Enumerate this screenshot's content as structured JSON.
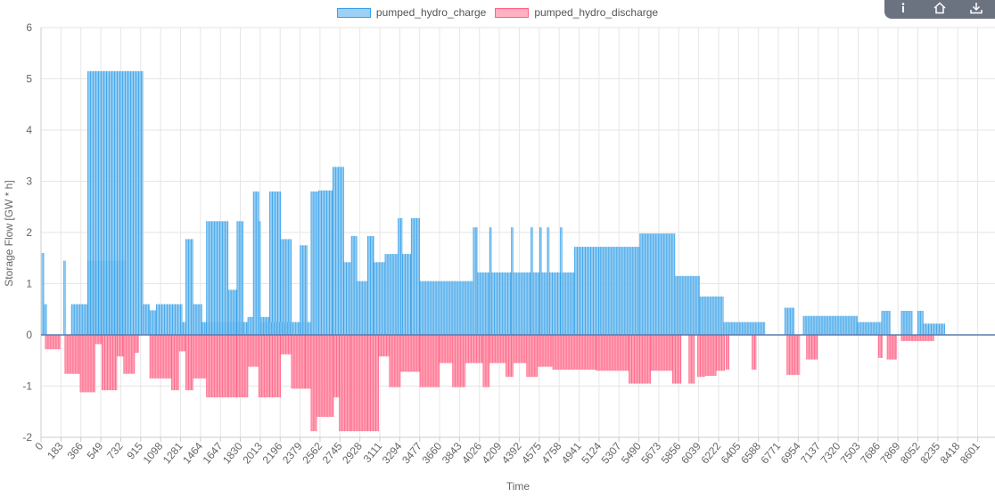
{
  "legend": {
    "charge": "pumped_hydro_charge",
    "discharge": "pumped_hydro_discharge"
  },
  "colors": {
    "charge_fill": "#7fc2f0",
    "charge_border": "#36a2eb",
    "discharge_fill": "#ff8fa8",
    "discharge_border": "#ff6384",
    "grid": "#e6e6e6",
    "toolbar": "#6b7280"
  },
  "toolbar": {
    "icons": [
      "info-icon",
      "home-icon",
      "download-icon"
    ]
  },
  "chart_data": {
    "type": "bar",
    "xlabel": "Time",
    "ylabel": "Storage Flow [GW * h]",
    "ylim": [
      -2,
      6
    ],
    "yticks": [
      -2,
      -1,
      0,
      1,
      2,
      3,
      4,
      5,
      6
    ],
    "xrange": [
      0,
      8760
    ],
    "xticks": [
      0,
      183,
      366,
      549,
      732,
      915,
      1098,
      1281,
      1464,
      1647,
      1830,
      2013,
      2196,
      2379,
      2562,
      2745,
      2928,
      3111,
      3294,
      3477,
      3660,
      3843,
      4026,
      4209,
      4392,
      4575,
      4758,
      4941,
      5124,
      5307,
      5490,
      5673,
      5856,
      6039,
      6222,
      6405,
      6588,
      6771,
      6954,
      7137,
      7320,
      7503,
      7686,
      7869,
      8052,
      8235,
      8418,
      8601
    ],
    "grid": true,
    "legend_position": "top",
    "series": [
      {
        "name": "pumped_hydro_charge",
        "segments": [
          [
            0,
            25,
            1.6
          ],
          [
            25,
            50,
            0.6
          ],
          [
            210,
            230,
            1.45
          ],
          [
            280,
            430,
            0.6
          ],
          [
            430,
            780,
            1.45
          ],
          [
            430,
            940,
            5.15
          ],
          [
            940,
            1000,
            0.6
          ],
          [
            1000,
            1060,
            0.48
          ],
          [
            1060,
            1300,
            0.6
          ],
          [
            1280,
            1330,
            0.25
          ],
          [
            1330,
            1400,
            1.87
          ],
          [
            1400,
            1480,
            0.6
          ],
          [
            1480,
            1520,
            0.25
          ],
          [
            1520,
            1720,
            2.22
          ],
          [
            1520,
            1900,
            0.25
          ],
          [
            1720,
            1800,
            0.88
          ],
          [
            1800,
            1860,
            2.22
          ],
          [
            1900,
            1950,
            0.35
          ],
          [
            1950,
            2000,
            2.8
          ],
          [
            2000,
            2020,
            2.22
          ],
          [
            2020,
            2100,
            0.35
          ],
          [
            2100,
            2200,
            2.8
          ],
          [
            2200,
            2300,
            1.87
          ],
          [
            2020,
            2380,
            0.25
          ],
          [
            2380,
            2450,
            1.75
          ],
          [
            2380,
            2480,
            0.25
          ],
          [
            2480,
            2550,
            2.8
          ],
          [
            2550,
            2680,
            2.82
          ],
          [
            2680,
            2780,
            3.28
          ],
          [
            2780,
            2850,
            1.42
          ],
          [
            2850,
            2900,
            1.93
          ],
          [
            2900,
            3000,
            1.05
          ],
          [
            3000,
            3060,
            1.93
          ],
          [
            3060,
            3160,
            1.42
          ],
          [
            3160,
            3280,
            1.58
          ],
          [
            3280,
            3320,
            2.28
          ],
          [
            3320,
            3400,
            1.58
          ],
          [
            3400,
            3480,
            2.28
          ],
          [
            3480,
            3970,
            1.05
          ],
          [
            3970,
            4010,
            2.1
          ],
          [
            4010,
            4120,
            1.22
          ],
          [
            4120,
            4140,
            2.1
          ],
          [
            4140,
            4320,
            1.22
          ],
          [
            4320,
            4340,
            2.1
          ],
          [
            4340,
            4500,
            1.22
          ],
          [
            4500,
            4520,
            2.1
          ],
          [
            4520,
            4580,
            1.22
          ],
          [
            4580,
            4600,
            2.1
          ],
          [
            4600,
            4650,
            1.22
          ],
          [
            4650,
            4670,
            2.1
          ],
          [
            4670,
            4770,
            1.22
          ],
          [
            4770,
            4790,
            2.1
          ],
          [
            4790,
            4900,
            1.22
          ],
          [
            4900,
            5140,
            1.72
          ],
          [
            5140,
            5500,
            1.72
          ],
          [
            5500,
            5820,
            1.98
          ],
          [
            5820,
            6050,
            1.15
          ],
          [
            6050,
            6270,
            0.75
          ],
          [
            6270,
            6650,
            0.25
          ],
          [
            6830,
            6920,
            0.53
          ],
          [
            7000,
            7500,
            0.37
          ],
          [
            7500,
            7720,
            0.25
          ],
          [
            7720,
            7800,
            0.47
          ],
          [
            7900,
            8000,
            0.47
          ],
          [
            8050,
            8100,
            0.47
          ],
          [
            8100,
            8300,
            0.22
          ]
        ]
      },
      {
        "name": "pumped_hydro_discharge",
        "segments": [
          [
            40,
            180,
            -0.28
          ],
          [
            220,
            360,
            -0.76
          ],
          [
            360,
            500,
            -1.12
          ],
          [
            500,
            560,
            -0.18
          ],
          [
            560,
            700,
            -1.08
          ],
          [
            700,
            760,
            -0.42
          ],
          [
            760,
            860,
            -0.76
          ],
          [
            860,
            900,
            -0.35
          ],
          [
            1000,
            1200,
            -0.85
          ],
          [
            1200,
            1270,
            -1.08
          ],
          [
            1270,
            1330,
            -0.32
          ],
          [
            1330,
            1400,
            -1.08
          ],
          [
            1400,
            1520,
            -0.85
          ],
          [
            1520,
            1720,
            -1.22
          ],
          [
            1720,
            1800,
            -1.22
          ],
          [
            1800,
            1900,
            -1.22
          ],
          [
            1900,
            2000,
            -0.62
          ],
          [
            2000,
            2100,
            -1.22
          ],
          [
            2100,
            2200,
            -1.22
          ],
          [
            2200,
            2300,
            -0.38
          ],
          [
            2300,
            2430,
            -1.05
          ],
          [
            2430,
            2480,
            -1.05
          ],
          [
            2480,
            2530,
            -1.88
          ],
          [
            2530,
            2690,
            -1.6
          ],
          [
            2690,
            2740,
            -1.22
          ],
          [
            2740,
            2850,
            -1.88
          ],
          [
            2850,
            3000,
            -1.88
          ],
          [
            3000,
            3100,
            -1.88
          ],
          [
            3100,
            3200,
            -0.42
          ],
          [
            3200,
            3300,
            -1.02
          ],
          [
            3300,
            3480,
            -0.72
          ],
          [
            3480,
            3660,
            -1.02
          ],
          [
            3660,
            3780,
            -0.55
          ],
          [
            3780,
            3900,
            -1.02
          ],
          [
            3900,
            4060,
            -0.55
          ],
          [
            4060,
            4120,
            -1.02
          ],
          [
            4120,
            4270,
            -0.55
          ],
          [
            4270,
            4340,
            -0.82
          ],
          [
            4340,
            4460,
            -0.55
          ],
          [
            4460,
            4560,
            -0.82
          ],
          [
            4560,
            4700,
            -0.62
          ],
          [
            4700,
            5100,
            -0.68
          ],
          [
            5100,
            5400,
            -0.7
          ],
          [
            5400,
            5520,
            -0.95
          ],
          [
            5520,
            5600,
            -0.95
          ],
          [
            5600,
            5800,
            -0.7
          ],
          [
            5800,
            5880,
            -0.95
          ],
          [
            5950,
            6000,
            -0.95
          ],
          [
            6030,
            6100,
            -0.82
          ],
          [
            6100,
            6200,
            -0.8
          ],
          [
            6200,
            6280,
            -0.7
          ],
          [
            6290,
            6320,
            -0.68
          ],
          [
            6530,
            6570,
            -0.68
          ],
          [
            6850,
            6970,
            -0.78
          ],
          [
            7030,
            7130,
            -0.48
          ],
          [
            7690,
            7730,
            -0.45
          ],
          [
            7770,
            7860,
            -0.48
          ],
          [
            7900,
            8000,
            -0.12
          ],
          [
            8000,
            8200,
            -0.12
          ]
        ]
      }
    ]
  }
}
